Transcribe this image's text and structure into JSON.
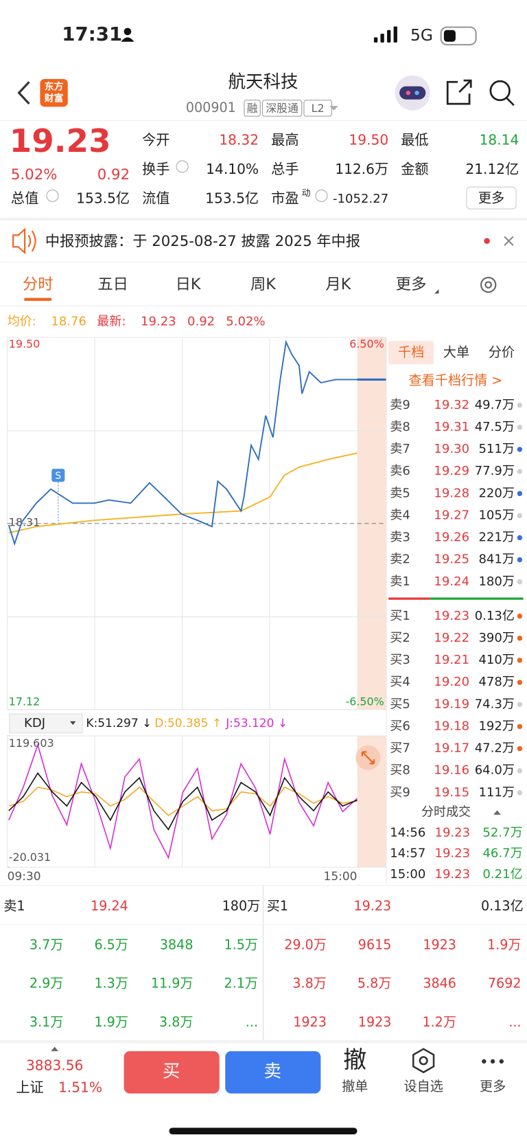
{
  "status_bar": {
    "time": "17:31",
    "network": "5G"
  },
  "header": {
    "logo": [
      "东方",
      "财富"
    ],
    "title": "航天科技",
    "code": "000901",
    "tags": [
      "融",
      "深股通",
      "L2"
    ]
  },
  "quote": {
    "price": "19.23",
    "change_pct": "5.02%",
    "change": "0.92",
    "total_value": {
      "label": "总值",
      "value": "153.5亿"
    },
    "stats": [
      [
        {
          "label": "今开",
          "value": "18.32",
          "color": "#e4393c"
        },
        {
          "label": "最高",
          "value": "19.50",
          "color": "#e4393c"
        },
        {
          "label": "最低",
          "value": "18.14",
          "color": "#1fa53a"
        }
      ],
      [
        {
          "label": "换手",
          "value": "14.10%",
          "color": "#222222"
        },
        {
          "label": "总手",
          "value": "112.6万",
          "color": "#222222"
        },
        {
          "label": "金额",
          "value": "21.12亿",
          "color": "#222222"
        }
      ],
      [
        {
          "label": "流值",
          "value": "153.5亿",
          "color": "#222222"
        },
        {
          "label": "市盈",
          "sup": "动",
          "value": "-1052.27",
          "color": "#222222"
        }
      ]
    ],
    "more": "更多"
  },
  "notice": {
    "text": "中报预披露：于 2025-08-27 披露 2025 年中报"
  },
  "tabs": {
    "items": [
      "分时",
      "五日",
      "日K",
      "周K",
      "月K",
      "更多"
    ],
    "active": 0
  },
  "summary": {
    "avg_label": "均价:",
    "avg": "18.76",
    "latest_label": "最新:",
    "latest": "19.23",
    "change": "0.92",
    "change_pct": "5.02%"
  },
  "intraday": {
    "ylim": [
      17.12,
      19.5
    ],
    "yticks": [
      {
        "value": 19.5,
        "label": "19.50"
      },
      17.12
    ],
    "pct_labels": [
      "6.50%",
      "-6.50%"
    ],
    "ref": {
      "value": 18.31,
      "label": "18.31"
    },
    "marker": "S",
    "xlim": [
      0,
      240
    ],
    "x_labels": [
      "09:30",
      "15:00"
    ],
    "price": {
      "color": "#2f6fc0",
      "minutes": [
        0,
        4,
        9,
        19,
        29,
        44,
        59,
        69,
        84,
        97,
        107,
        119,
        130,
        140,
        144,
        150,
        160,
        162,
        167,
        172,
        177,
        182,
        187,
        191,
        195,
        200,
        202,
        207,
        215,
        225,
        240
      ],
      "values": [
        18.3,
        18.18,
        18.32,
        18.44,
        18.53,
        18.44,
        18.44,
        18.46,
        18.44,
        18.57,
        18.48,
        18.37,
        18.33,
        18.29,
        18.58,
        18.53,
        18.39,
        18.48,
        18.81,
        18.72,
        19.0,
        18.86,
        19.23,
        19.47,
        19.39,
        19.32,
        19.14,
        19.28,
        19.21,
        19.23,
        19.23
      ]
    },
    "avg": {
      "color": "#f5b325",
      "minutes": [
        0,
        19,
        59,
        119,
        160,
        180,
        190,
        200,
        220,
        240
      ],
      "values": [
        18.25,
        18.29,
        18.33,
        18.37,
        18.39,
        18.48,
        18.62,
        18.67,
        18.72,
        18.76
      ]
    }
  },
  "kdj": {
    "selector": "KDJ",
    "k_label": "K:51.297 ↓",
    "d_label": "D:50.385 ↑",
    "j_label": "J:53.120 ↓",
    "ylim": [
      -20.031,
      119.603
    ],
    "minutes": [
      0,
      10,
      20,
      30,
      40,
      50,
      60,
      70,
      80,
      90,
      100,
      110,
      120,
      130,
      140,
      150,
      160,
      170,
      180,
      190,
      200,
      210,
      220,
      230,
      240
    ],
    "series": [
      {
        "name": "K",
        "color": "#111111",
        "values": [
          40,
          55,
          80,
          60,
          45,
          70,
          55,
          30,
          60,
          75,
          40,
          20,
          50,
          65,
          30,
          40,
          70,
          60,
          35,
          75,
          55,
          40,
          60,
          45,
          51.297
        ]
      },
      {
        "name": "D",
        "color": "#f5a623",
        "values": [
          45,
          50,
          65,
          62,
          55,
          60,
          58,
          45,
          52,
          65,
          50,
          35,
          45,
          55,
          40,
          42,
          60,
          58,
          45,
          65,
          58,
          48,
          55,
          48,
          50.385
        ]
      },
      {
        "name": "J",
        "color": "#d62ad6",
        "values": [
          30,
          65,
          110,
          56,
          25,
          90,
          49,
          0,
          76,
          95,
          20,
          -10,
          60,
          85,
          10,
          36,
          90,
          64,
          15,
          95,
          49,
          24,
          70,
          39,
          53.12
        ]
      }
    ]
  },
  "order_book": {
    "tabs": [
      "千档",
      "大单",
      "分价"
    ],
    "link": "查看千档行情 >",
    "asks": [
      {
        "label": "卖9",
        "price": "19.32",
        "volume": "49.7万",
        "dot": "#cfcfcf"
      },
      {
        "label": "卖8",
        "price": "19.31",
        "volume": "47.5万",
        "dot": "#cfcfcf"
      },
      {
        "label": "卖7",
        "price": "19.30",
        "volume": "511万",
        "dot": "#3a6fd8"
      },
      {
        "label": "卖6",
        "price": "19.29",
        "volume": "77.9万",
        "dot": "#cfcfcf"
      },
      {
        "label": "卖5",
        "price": "19.28",
        "volume": "220万",
        "dot": "#3a6fd8"
      },
      {
        "label": "卖4",
        "price": "19.27",
        "volume": "105万",
        "dot": "#cfcfcf"
      },
      {
        "label": "卖3",
        "price": "19.26",
        "volume": "221万",
        "dot": "#3a6fd8"
      },
      {
        "label": "卖2",
        "price": "19.25",
        "volume": "841万",
        "dot": "#3a6fd8"
      },
      {
        "label": "卖1",
        "price": "19.24",
        "volume": "180万",
        "dot": "#cfcfcf"
      }
    ],
    "bids": [
      {
        "label": "买1",
        "price": "19.23",
        "volume": "0.13亿",
        "dot": "#f0641e"
      },
      {
        "label": "买2",
        "price": "19.22",
        "volume": "390万",
        "dot": "#f0641e"
      },
      {
        "label": "买3",
        "price": "19.21",
        "volume": "410万",
        "dot": "#f0641e"
      },
      {
        "label": "买4",
        "price": "19.20",
        "volume": "478万",
        "dot": "#f0641e"
      },
      {
        "label": "买5",
        "price": "19.19",
        "volume": "74.3万",
        "dot": "#cfcfcf"
      },
      {
        "label": "买6",
        "price": "19.18",
        "volume": "192万",
        "dot": "#f0641e"
      },
      {
        "label": "买7",
        "price": "19.17",
        "volume": "47.2万",
        "dot": "#f0641e"
      },
      {
        "label": "买8",
        "price": "19.16",
        "volume": "64.0万",
        "dot": "#cfcfcf"
      },
      {
        "label": "买9",
        "price": "19.15",
        "volume": "111万",
        "dot": "#cfcfcf"
      }
    ]
  },
  "trades": {
    "title": "分时成交",
    "rows": [
      {
        "time": "14:56",
        "price": "19.23",
        "volume": "52.7万"
      },
      {
        "time": "14:57",
        "price": "19.23",
        "volume": "46.7万"
      },
      {
        "time": "15:00",
        "price": "19.23",
        "volume": "0.21亿"
      }
    ]
  },
  "big_orders": {
    "sell": {
      "label": "卖1",
      "price": "19.24",
      "volume": "180万",
      "cells": [
        "3.7万",
        "6.5万",
        "3848",
        "1.5万",
        "2.9万",
        "1.3万",
        "11.9万",
        "2.1万",
        "3.1万",
        "1.9万",
        "3.8万",
        "..."
      ]
    },
    "buy": {
      "label": "买1",
      "price": "19.23",
      "volume": "0.13亿",
      "cells": [
        "29.0万",
        "9615",
        "1923",
        "1.9万",
        "3.8万",
        "5.8万",
        "3846",
        "7692",
        "1923",
        "1923",
        "1.2万",
        "..."
      ]
    }
  },
  "bottom_bar": {
    "index": {
      "value": "3883.56",
      "name": "上证",
      "change_pct": "1.51%"
    },
    "buy": "买",
    "sell": "卖",
    "cancel_icon": "撤",
    "cancel": "撤单",
    "watch": "设自选",
    "more": "更多"
  }
}
